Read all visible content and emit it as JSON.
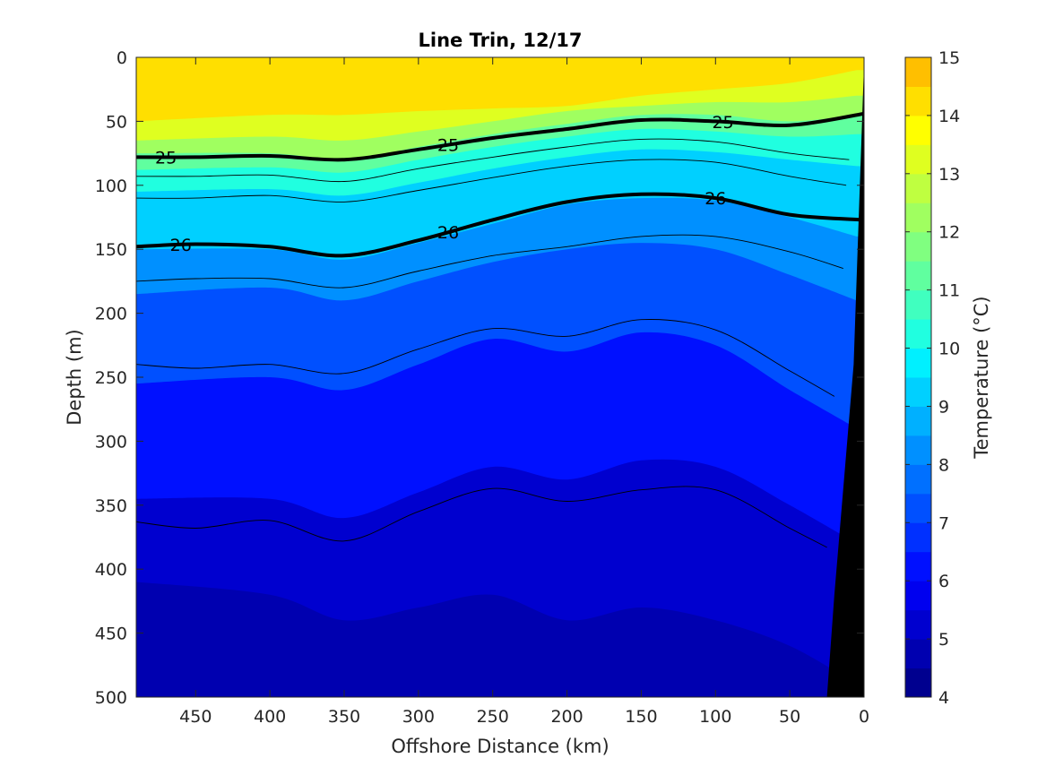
{
  "chart_data": {
    "type": "heatmap",
    "subtype": "filled-contour",
    "title": "Line Trin, 12/17",
    "xlabel": "Offshore Distance (km)",
    "ylabel": "Depth (m)",
    "colorbar_label": "Temperature (°C)",
    "x_axis_reversed": true,
    "y_axis_reversed": true,
    "xlim": [
      490,
      0
    ],
    "ylim": [
      0,
      500
    ],
    "x_ticks": [
      450,
      400,
      350,
      300,
      250,
      200,
      150,
      100,
      50,
      0
    ],
    "y_ticks": [
      0,
      50,
      100,
      150,
      200,
      250,
      300,
      350,
      400,
      450,
      500
    ],
    "colorbar_range": [
      4,
      15
    ],
    "colorbar_ticks": [
      4,
      5,
      6,
      7,
      8,
      9,
      10,
      11,
      12,
      13,
      14,
      15
    ],
    "colormap": "jet",
    "colorbar_levels": [
      {
        "from": 4.0,
        "to": 4.5,
        "color": "#00008f"
      },
      {
        "from": 4.5,
        "to": 5.0,
        "color": "#0000b0"
      },
      {
        "from": 5.0,
        "to": 5.5,
        "color": "#0000cf"
      },
      {
        "from": 5.5,
        "to": 6.0,
        "color": "#0000ef"
      },
      {
        "from": 6.0,
        "to": 6.5,
        "color": "#0010ff"
      },
      {
        "from": 6.5,
        "to": 7.0,
        "color": "#0030ff"
      },
      {
        "from": 7.0,
        "to": 7.5,
        "color": "#0050ff"
      },
      {
        "from": 7.5,
        "to": 8.0,
        "color": "#0070ff"
      },
      {
        "from": 8.0,
        "to": 8.5,
        "color": "#0090ff"
      },
      {
        "from": 8.5,
        "to": 9.0,
        "color": "#00b0ff"
      },
      {
        "from": 9.0,
        "to": 9.5,
        "color": "#00d0ff"
      },
      {
        "from": 9.5,
        "to": 10.0,
        "color": "#00f0ff"
      },
      {
        "from": 10.0,
        "to": 10.5,
        "color": "#20ffe0"
      },
      {
        "from": 10.5,
        "to": 11.0,
        "color": "#40ffbf"
      },
      {
        "from": 11.0,
        "to": 11.5,
        "color": "#60ff9f"
      },
      {
        "from": 11.5,
        "to": 12.0,
        "color": "#80ff80"
      },
      {
        "from": 12.0,
        "to": 12.5,
        "color": "#a0ff60"
      },
      {
        "from": 12.5,
        "to": 13.0,
        "color": "#bfff40"
      },
      {
        "from": 13.0,
        "to": 13.5,
        "color": "#dfff20"
      },
      {
        "from": 13.5,
        "to": 14.0,
        "color": "#ffff00"
      },
      {
        "from": 14.0,
        "to": 14.5,
        "color": "#ffdf00"
      },
      {
        "from": 14.5,
        "to": 15.0,
        "color": "#ffbf00"
      }
    ],
    "isopycnals": [
      {
        "label": "25",
        "x": [
          490,
          450,
          400,
          350,
          300,
          250,
          200,
          150,
          100,
          50,
          0
        ],
        "y": [
          78,
          78,
          77,
          80,
          72,
          63,
          56,
          49,
          50,
          53,
          44
        ]
      },
      {
        "label": "26",
        "x": [
          490,
          450,
          400,
          350,
          300,
          250,
          200,
          150,
          100,
          50,
          0
        ],
        "y": [
          148,
          146,
          148,
          155,
          143,
          127,
          113,
          107,
          110,
          123,
          127
        ]
      }
    ],
    "thin_contours": [
      {
        "x": [
          490,
          450,
          400,
          350,
          300,
          250,
          200,
          150,
          100,
          50,
          10
        ],
        "y": [
          93,
          93,
          92,
          97,
          87,
          78,
          70,
          64,
          66,
          75,
          80
        ]
      },
      {
        "x": [
          490,
          450,
          400,
          350,
          300,
          250,
          200,
          150,
          100,
          50,
          12
        ],
        "y": [
          110,
          110,
          108,
          113,
          104,
          94,
          85,
          80,
          82,
          93,
          100
        ]
      },
      {
        "x": [
          490,
          450,
          400,
          350,
          300,
          250,
          200,
          150,
          100,
          50,
          14
        ],
        "y": [
          175,
          173,
          173,
          180,
          167,
          155,
          148,
          140,
          140,
          152,
          165
        ]
      },
      {
        "x": [
          490,
          450,
          400,
          350,
          300,
          250,
          200,
          150,
          100,
          50,
          20
        ],
        "y": [
          240,
          243,
          240,
          247,
          228,
          212,
          218,
          205,
          213,
          245,
          265
        ]
      },
      {
        "x": [
          490,
          450,
          400,
          350,
          300,
          250,
          200,
          150,
          100,
          50,
          25
        ],
        "y": [
          363,
          368,
          362,
          378,
          355,
          337,
          347,
          338,
          338,
          368,
          383
        ]
      }
    ],
    "temperature_field": [
      {
        "temp": 14.0,
        "x": [
          490,
          400,
          350,
          300,
          250,
          200,
          150,
          100,
          50,
          5
        ],
        "y": [
          50,
          45,
          45,
          42,
          40,
          38,
          30,
          25,
          20,
          10
        ]
      },
      {
        "temp": 13.0,
        "x": [
          490,
          400,
          350,
          300,
          250,
          200,
          150,
          100,
          50,
          5
        ],
        "y": [
          65,
          62,
          65,
          58,
          50,
          42,
          38,
          35,
          35,
          30
        ]
      },
      {
        "temp": 12.0,
        "x": [
          490,
          400,
          350,
          300,
          250,
          200,
          150,
          100,
          50,
          5
        ],
        "y": [
          75,
          75,
          80,
          70,
          60,
          52,
          45,
          45,
          50,
          45
        ]
      },
      {
        "temp": 11.0,
        "x": [
          490,
          400,
          350,
          300,
          250,
          200,
          150,
          100,
          50,
          5
        ],
        "y": [
          88,
          86,
          90,
          80,
          70,
          62,
          56,
          58,
          62,
          60
        ]
      },
      {
        "temp": 10.0,
        "x": [
          490,
          400,
          350,
          300,
          250,
          200,
          150,
          100,
          50,
          5
        ],
        "y": [
          105,
          103,
          108,
          98,
          87,
          78,
          72,
          74,
          80,
          85
        ]
      },
      {
        "temp": 9.0,
        "x": [
          490,
          400,
          350,
          300,
          250,
          200,
          150,
          100,
          50,
          5
        ],
        "y": [
          150,
          150,
          158,
          145,
          130,
          115,
          110,
          112,
          125,
          140
        ]
      },
      {
        "temp": 8.0,
        "x": [
          490,
          400,
          350,
          300,
          250,
          200,
          150,
          100,
          50,
          5
        ],
        "y": [
          185,
          180,
          190,
          175,
          160,
          150,
          145,
          150,
          170,
          190
        ]
      },
      {
        "temp": 7.0,
        "x": [
          490,
          400,
          350,
          300,
          250,
          200,
          150,
          100,
          50,
          5
        ],
        "y": [
          255,
          250,
          260,
          240,
          220,
          230,
          215,
          225,
          260,
          290
        ]
      },
      {
        "temp": 6.0,
        "x": [
          490,
          400,
          350,
          300,
          250,
          200,
          150,
          100,
          50,
          5
        ],
        "y": [
          345,
          345,
          360,
          340,
          320,
          330,
          315,
          320,
          350,
          380
        ]
      },
      {
        "temp": 5.0,
        "x": [
          490,
          400,
          350,
          300,
          250,
          200,
          150,
          100,
          50,
          5
        ],
        "y": [
          410,
          420,
          440,
          430,
          420,
          440,
          430,
          440,
          460,
          490
        ]
      }
    ],
    "seafloor": {
      "color": "#000000",
      "x": [
        0,
        25,
        25,
        12,
        0
      ],
      "y": [
        0,
        500,
        500,
        200,
        0
      ],
      "outline_x": [
        0,
        7,
        20,
        25,
        0
      ],
      "outline_y": [
        5,
        240,
        420,
        500,
        500
      ]
    }
  }
}
